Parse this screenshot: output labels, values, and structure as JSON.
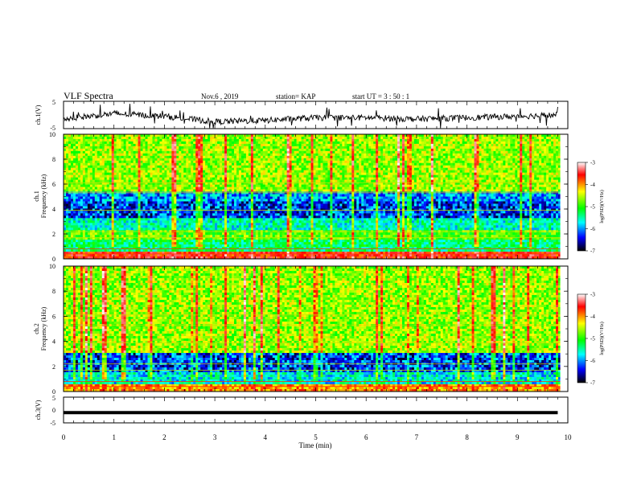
{
  "header": {
    "title": "VLF Spectra",
    "date": "Nov.6  , 2019",
    "station": "station= KAP",
    "start": "start  UT  =   3  : 50 : 1"
  },
  "colorbar": {
    "label": "log(PSD)(V²/Hz)",
    "ticks": [
      "-3",
      "-4",
      "-5",
      "-6",
      "-7"
    ],
    "colors": [
      "#ffffff",
      "#ff0000",
      "#ffff00",
      "#00ff00",
      "#00ffff",
      "#0000ff",
      "#000000"
    ]
  },
  "chart_data": [
    {
      "type": "line",
      "panel": "ch1-voltage",
      "ylabel": "ch.1(V)",
      "ylim": [
        -5,
        5
      ],
      "yticks": [
        "5",
        "-5"
      ],
      "x_range_min": [
        0,
        10
      ],
      "description_series": {
        "x": [
          0,
          1,
          2,
          3,
          4,
          5,
          6,
          7,
          8,
          9,
          9.8
        ],
        "values": [
          -1.5,
          0.5,
          -0.5,
          -2.5,
          -2,
          -1,
          -1,
          -1.5,
          -1,
          -0.5,
          0
        ]
      }
    },
    {
      "type": "heatmap",
      "panel": "ch1-spectrogram",
      "ylabel_line1": "ch.1",
      "ylabel_line2": "Frequency (kHz)",
      "ylim": [
        0,
        10
      ],
      "yticks": [
        "0",
        "2",
        "4",
        "6",
        "8",
        "10"
      ],
      "colorscale_range": [
        -7,
        -3
      ]
    },
    {
      "type": "heatmap",
      "panel": "ch2-spectrogram",
      "ylabel_line1": "ch.2",
      "ylabel_line2": "Frequency (kHz)",
      "ylim": [
        0,
        10
      ],
      "yticks": [
        "0",
        "2",
        "4",
        "6",
        "8",
        "10"
      ],
      "colorscale_range": [
        -7,
        -3
      ]
    },
    {
      "type": "line",
      "panel": "ch3-voltage",
      "ylabel": "ch.3(V)",
      "ylim": [
        -5,
        5
      ],
      "yticks": [
        "5",
        "0",
        "-5"
      ],
      "x": [
        0,
        9.8
      ],
      "values": [
        -1,
        -1
      ]
    }
  ],
  "xaxis": {
    "label": "Time  (min)",
    "ticks": [
      "0",
      "1",
      "2",
      "3",
      "4",
      "5",
      "6",
      "7",
      "8",
      "9",
      "10"
    ],
    "xlim": [
      0,
      10
    ]
  }
}
